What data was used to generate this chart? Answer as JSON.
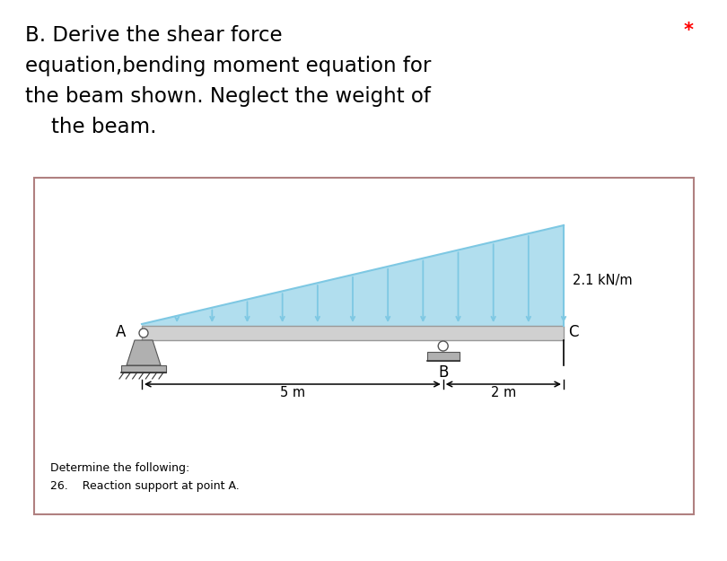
{
  "bg_color": "#e8e8e8",
  "page_color": "#ffffff",
  "box_color": "#ffffff",
  "box_border": "#b08080",
  "title_lines": [
    "B. Derive the shear force",
    "equation,bending moment equation for",
    "the beam shown. Neglect the weight of",
    "    the beam."
  ],
  "star_text": "*",
  "beam_load_label": "2.1 kN/m",
  "dim_label_5m": "5 m",
  "dim_label_2m": "2 m",
  "label_A": "A",
  "label_B": "B",
  "label_C": "C",
  "footer_line1": "Determine the following:",
  "footer_line2": "26.    Reaction support at point A.",
  "load_color": "#7ec8e3",
  "beam_color": "#d0d0d0",
  "beam_border": "#999999",
  "support_color": "#b0b0b0",
  "text_color": "#000000",
  "title_fontsize": 16.5,
  "label_fontsize": 12,
  "dim_fontsize": 10.5
}
